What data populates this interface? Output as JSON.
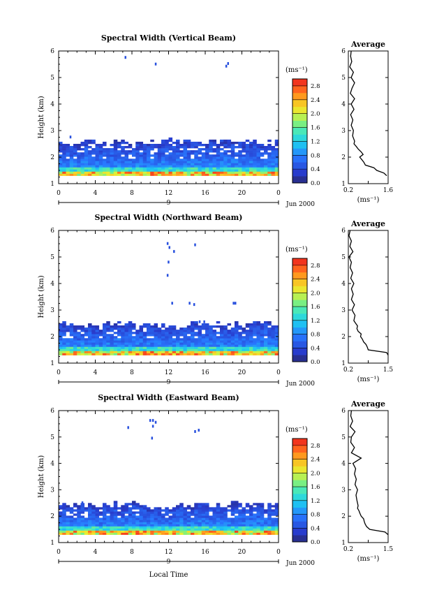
{
  "figure": {
    "xlabel": "Local Time",
    "date_label": "Jun 2000",
    "day_label": "9",
    "height_label": "Height (km)",
    "colorbar_unit": "(ms⁻¹)",
    "avg_title": "Average",
    "avg_xlabel": "(ms⁻¹)"
  },
  "chart_data": [
    {
      "type": "heatmap",
      "title": "Spectral Width (Vertical Beam)",
      "xlabel": "Local Time",
      "ylabel": "Height (km)",
      "xlim": [
        0,
        24
      ],
      "ylim": [
        1,
        6
      ],
      "xticks": [
        "0",
        "4",
        "8",
        "12",
        "16",
        "20",
        "0"
      ],
      "yticks": [
        "1",
        "2",
        "3",
        "4",
        "5",
        "6"
      ],
      "colorbar": {
        "unit": "(ms⁻¹)",
        "min": 0.0,
        "max": 3.0,
        "ticks": [
          "0.0",
          "0.4",
          "0.8",
          "1.2",
          "1.6",
          "2.0",
          "2.4",
          "2.8"
        ]
      },
      "data_top_km": 2.55,
      "isolated_echoes": [
        [
          7.2,
          5.75
        ],
        [
          10.5,
          5.5
        ],
        [
          18.2,
          5.42
        ],
        [
          18.4,
          5.52
        ],
        [
          1.2,
          2.75
        ]
      ],
      "average_profile": {
        "title": "Average",
        "xlim": [
          0.2,
          1.6
        ],
        "xticks": [
          "0.2",
          "0.9",
          "1.6"
        ],
        "height_km": [
          1.3,
          1.4,
          1.5,
          1.6,
          1.7,
          1.8,
          1.9,
          2.0,
          2.1,
          2.2,
          2.3,
          2.4,
          2.5,
          2.6,
          2.8,
          3.0,
          3.2,
          3.4,
          3.6,
          3.8,
          4.0,
          4.2,
          4.4,
          4.6,
          4.8,
          5.0,
          5.2,
          5.4,
          5.6,
          5.8,
          6.0
        ],
        "width_ms": [
          1.55,
          1.45,
          1.2,
          1.1,
          0.8,
          0.75,
          0.68,
          0.6,
          0.72,
          0.65,
          0.55,
          0.48,
          0.4,
          0.42,
          0.35,
          0.38,
          0.3,
          0.36,
          0.28,
          0.4,
          0.3,
          0.42,
          0.27,
          0.33,
          0.42,
          0.3,
          0.38,
          0.25,
          0.32,
          0.28,
          0.3
        ]
      }
    },
    {
      "type": "heatmap",
      "title": "Spectral Width (Northward Beam)",
      "xlabel": "Local Time",
      "ylabel": "Height (km)",
      "xlim": [
        0,
        24
      ],
      "ylim": [
        1,
        6
      ],
      "xticks": [
        "0",
        "4",
        "8",
        "12",
        "16",
        "20",
        "0"
      ],
      "yticks": [
        "1",
        "2",
        "3",
        "4",
        "5",
        "6"
      ],
      "colorbar": {
        "unit": "(ms⁻¹)",
        "min": 0.0,
        "max": 3.0,
        "ticks": [
          "0.0",
          "0.4",
          "0.8",
          "1.2",
          "1.6",
          "2.0",
          "2.4",
          "2.8"
        ]
      },
      "data_top_km": 2.45,
      "isolated_echoes": [
        [
          11.8,
          5.5
        ],
        [
          12.0,
          5.35
        ],
        [
          12.5,
          5.2
        ],
        [
          14.8,
          5.45
        ],
        [
          11.9,
          4.8
        ],
        [
          11.8,
          4.3
        ],
        [
          12.3,
          3.25
        ],
        [
          14.2,
          3.25
        ],
        [
          14.7,
          3.2
        ],
        [
          19.0,
          3.25
        ],
        [
          19.2,
          3.25
        ],
        [
          15.3,
          2.55
        ],
        [
          15.8,
          2.55
        ]
      ],
      "average_profile": {
        "title": "Average",
        "xlim": [
          0.2,
          1.5
        ],
        "xticks": [
          "0.2",
          "0.85",
          "1.5"
        ],
        "height_km": [
          1.3,
          1.4,
          1.5,
          1.6,
          1.7,
          1.8,
          1.9,
          2.0,
          2.1,
          2.2,
          2.3,
          2.4,
          2.5,
          2.6,
          2.8,
          3.0,
          3.2,
          3.4,
          3.6,
          3.8,
          4.0,
          4.2,
          4.4,
          4.6,
          4.8,
          5.0,
          5.2,
          5.4,
          5.6,
          5.8,
          6.0
        ],
        "width_ms": [
          1.5,
          1.45,
          0.85,
          0.82,
          0.78,
          0.7,
          0.66,
          0.6,
          0.62,
          0.52,
          0.48,
          0.5,
          0.44,
          0.38,
          0.42,
          0.32,
          0.4,
          0.3,
          0.36,
          0.3,
          0.38,
          0.28,
          0.34,
          0.26,
          0.3,
          0.22,
          0.35,
          0.25,
          0.3,
          0.22,
          0.26
        ]
      }
    },
    {
      "type": "heatmap",
      "title": "Spectral Width (Eastward Beam)",
      "xlabel": "Local Time",
      "ylabel": "Height (km)",
      "xlim": [
        0,
        24
      ],
      "ylim": [
        1,
        6
      ],
      "xticks": [
        "0",
        "4",
        "8",
        "12",
        "16",
        "20",
        "0"
      ],
      "yticks": [
        "1",
        "2",
        "3",
        "4",
        "5",
        "6"
      ],
      "colorbar": {
        "unit": "(ms⁻¹)",
        "min": 0.0,
        "max": 3.0,
        "ticks": [
          "0.0",
          "0.4",
          "0.8",
          "1.2",
          "1.6",
          "2.0",
          "2.4",
          "2.8"
        ]
      },
      "data_top_km": 2.4,
      "isolated_echoes": [
        [
          9.9,
          5.62
        ],
        [
          10.2,
          5.62
        ],
        [
          10.5,
          5.55
        ],
        [
          7.5,
          5.35
        ],
        [
          10.2,
          5.4
        ],
        [
          10.1,
          4.95
        ],
        [
          14.8,
          5.2
        ],
        [
          15.2,
          5.25
        ],
        [
          2.5,
          2.5
        ]
      ],
      "average_profile": {
        "title": "Average",
        "xlim": [
          0.2,
          1.5
        ],
        "xticks": [
          "0.2",
          "0.85",
          "1.5"
        ],
        "height_km": [
          1.3,
          1.4,
          1.5,
          1.6,
          1.7,
          1.8,
          1.9,
          2.0,
          2.1,
          2.2,
          2.3,
          2.4,
          2.6,
          2.8,
          3.0,
          3.2,
          3.4,
          3.6,
          3.8,
          4.0,
          4.2,
          4.4,
          4.6,
          4.8,
          5.0,
          5.2,
          5.4,
          5.6,
          5.8,
          6.0
        ],
        "width_ms": [
          1.5,
          1.4,
          0.9,
          0.8,
          0.75,
          0.72,
          0.7,
          0.62,
          0.58,
          0.55,
          0.5,
          0.52,
          0.48,
          0.45,
          0.5,
          0.42,
          0.46,
          0.4,
          0.44,
          0.35,
          0.62,
          0.3,
          0.4,
          0.28,
          0.3,
          0.42,
          0.26,
          0.34,
          0.28,
          0.3
        ]
      }
    }
  ]
}
